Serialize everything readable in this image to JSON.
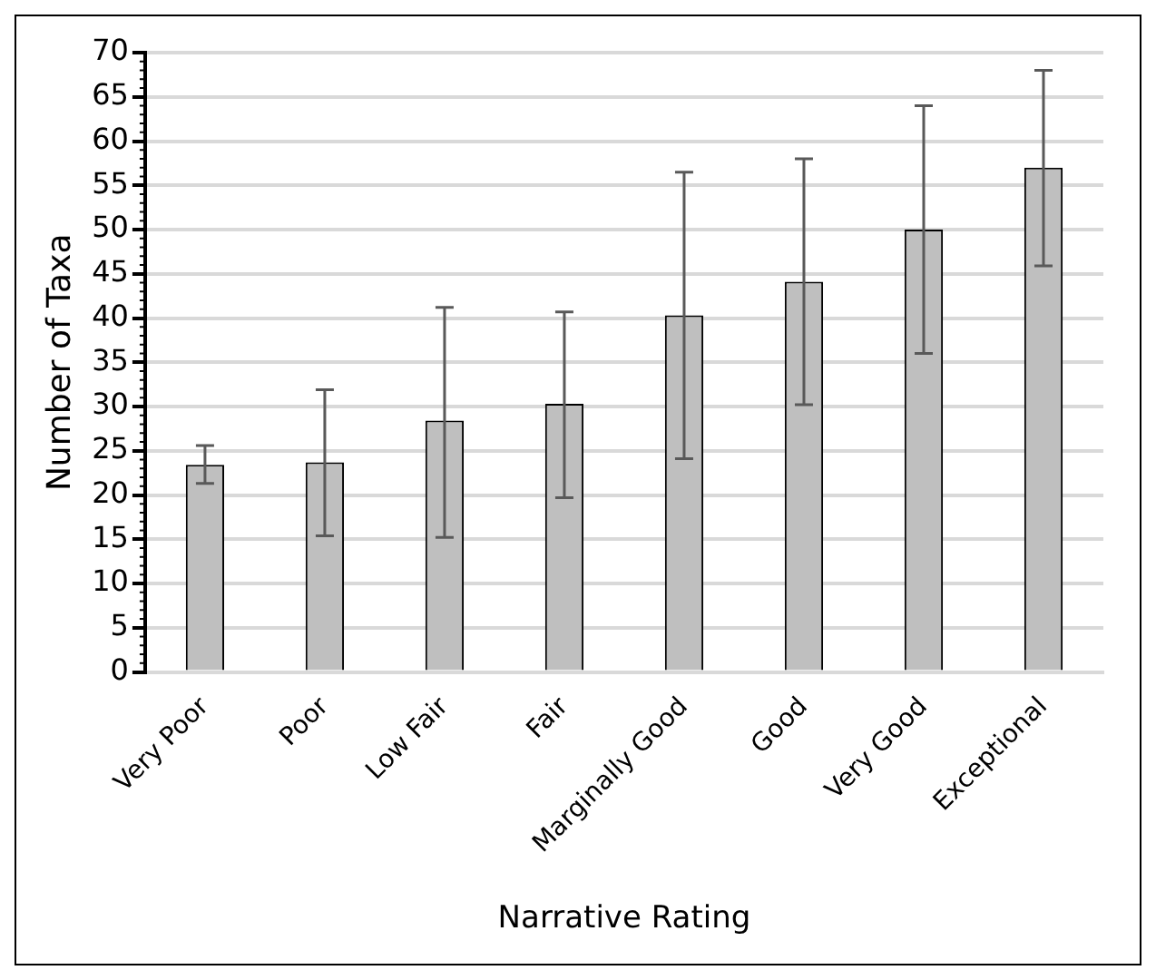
{
  "chart_data": {
    "type": "bar",
    "xlabel": "Narrative Rating",
    "ylabel": "Number of Taxa",
    "categories": [
      "Very Poor",
      "Poor",
      "Low Fair",
      "Fair",
      "Marginally Good",
      "Good",
      "Very Good",
      "Exceptional"
    ],
    "values": [
      23.4,
      23.7,
      28.4,
      30.3,
      40.3,
      44.1,
      50.0,
      57.0
    ],
    "errors": [
      [
        21.3,
        25.6
      ],
      [
        15.4,
        31.9
      ],
      [
        15.2,
        41.2
      ],
      [
        19.7,
        40.7
      ],
      [
        24.1,
        56.5
      ],
      [
        30.2,
        58.0
      ],
      [
        36.0,
        64.0
      ],
      [
        45.9,
        68.0
      ]
    ],
    "color": "#bfbfbf",
    "ylim": [
      0,
      70
    ],
    "yticks": [
      0,
      5,
      10,
      15,
      20,
      25,
      30,
      35,
      40,
      45,
      50,
      55,
      60,
      65,
      70
    ],
    "grid": "y",
    "legend": false
  }
}
